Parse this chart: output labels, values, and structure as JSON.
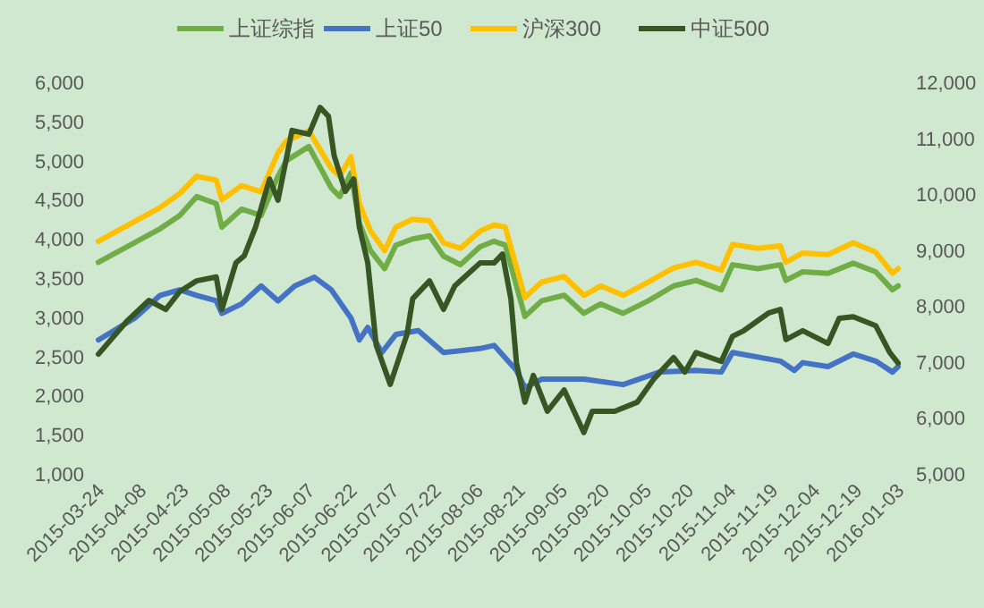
{
  "chart_data": {
    "type": "line",
    "legend": "top",
    "line_style": "solid",
    "xlim": [
      "2015-03-24",
      "2016-01-03"
    ],
    "xticks": [
      "2015-03-24",
      "2015-04-08",
      "2015-04-23",
      "2015-05-08",
      "2015-05-23",
      "2015-06-07",
      "2015-06-22",
      "2015-07-07",
      "2015-07-22",
      "2015-08-06",
      "2015-08-21",
      "2015-09-05",
      "2015-09-20",
      "2015-10-05",
      "2015-10-20",
      "2015-11-04",
      "2015-11-19",
      "2015-12-04",
      "2015-12-19",
      "2016-01-03"
    ],
    "ylim": [
      1000,
      6000
    ],
    "yticks": [
      {
        "value": 1000,
        "label": "1,000"
      },
      {
        "value": 1500,
        "label": "1,500"
      },
      {
        "value": 2000,
        "label": "2,000"
      },
      {
        "value": 2500,
        "label": "2,500"
      },
      {
        "value": 3000,
        "label": "3,000"
      },
      {
        "value": 3500,
        "label": "3,500"
      },
      {
        "value": 4000,
        "label": "4,000"
      },
      {
        "value": 4500,
        "label": "4,500"
      },
      {
        "value": 5000,
        "label": "5,000"
      },
      {
        "value": 5500,
        "label": "5,500"
      },
      {
        "value": 6000,
        "label": "6,000"
      }
    ],
    "y2lim": [
      5000,
      12000
    ],
    "y2ticks": [
      {
        "value": 5000,
        "label": "5,000"
      },
      {
        "value": 6000,
        "label": "6,000"
      },
      {
        "value": 7000,
        "label": "7,000"
      },
      {
        "value": 8000,
        "label": "8,000"
      },
      {
        "value": 9000,
        "label": "9,000"
      },
      {
        "value": 10000,
        "label": "10,000"
      },
      {
        "value": 11000,
        "label": "11,000"
      },
      {
        "value": 12000,
        "label": "12,000"
      }
    ],
    "series": [
      {
        "name": "上证综指",
        "color": "#70ad47",
        "x": [
          "2015-03-24",
          "2015-04-15",
          "2015-04-22",
          "2015-04-28",
          "2015-05-05",
          "2015-05-07",
          "2015-05-14",
          "2015-05-21",
          "2015-05-27",
          "2015-05-30",
          "2015-06-07",
          "2015-06-15",
          "2015-06-18",
          "2015-06-22",
          "2015-06-25",
          "2015-06-29",
          "2015-07-04",
          "2015-07-08",
          "2015-07-14",
          "2015-07-20",
          "2015-07-25",
          "2015-07-31",
          "2015-08-07",
          "2015-08-12",
          "2015-08-16",
          "2015-08-23",
          "2015-08-29",
          "2015-09-06",
          "2015-09-13",
          "2015-09-19",
          "2015-09-27",
          "2015-10-06",
          "2015-10-15",
          "2015-10-23",
          "2015-11-01",
          "2015-11-05",
          "2015-11-14",
          "2015-11-22",
          "2015-11-24",
          "2015-11-30",
          "2015-12-09",
          "2015-12-18",
          "2015-12-26",
          "2016-01-01",
          "2016-01-03"
        ],
        "values": [
          3700,
          4130,
          4300,
          4540,
          4450,
          4150,
          4380,
          4300,
          4800,
          5000,
          5180,
          4650,
          4540,
          4840,
          4200,
          3850,
          3620,
          3920,
          4000,
          4040,
          3780,
          3670,
          3900,
          3970,
          3920,
          3010,
          3210,
          3280,
          3050,
          3170,
          3050,
          3210,
          3400,
          3470,
          3350,
          3670,
          3620,
          3670,
          3470,
          3580,
          3560,
          3690,
          3580,
          3350,
          3400
        ]
      },
      {
        "name": "上证50",
        "color": "#4472c4",
        "x": [
          "2015-03-24",
          "2015-04-06",
          "2015-04-15",
          "2015-04-22",
          "2015-04-28",
          "2015-05-05",
          "2015-05-07",
          "2015-05-14",
          "2015-05-21",
          "2015-05-27",
          "2015-06-02",
          "2015-06-09",
          "2015-06-15",
          "2015-06-22",
          "2015-06-25",
          "2015-06-28",
          "2015-07-03",
          "2015-07-08",
          "2015-07-16",
          "2015-07-25",
          "2015-08-07",
          "2015-08-12",
          "2015-08-20",
          "2015-08-23",
          "2015-08-29",
          "2015-09-13",
          "2015-09-27",
          "2015-10-10",
          "2015-10-23",
          "2015-11-01",
          "2015-11-05",
          "2015-11-22",
          "2015-11-27",
          "2015-11-30",
          "2015-12-09",
          "2015-12-18",
          "2015-12-26",
          "2016-01-01",
          "2016-01-03"
        ],
        "values": [
          2710,
          2990,
          3280,
          3350,
          3280,
          3210,
          3050,
          3170,
          3400,
          3210,
          3400,
          3510,
          3350,
          2990,
          2710,
          2870,
          2550,
          2780,
          2830,
          2550,
          2600,
          2640,
          2320,
          2100,
          2210,
          2210,
          2140,
          2300,
          2320,
          2300,
          2550,
          2440,
          2320,
          2420,
          2370,
          2530,
          2440,
          2300,
          2370
        ]
      },
      {
        "name": "沪深300",
        "color": "#ffc000",
        "x": [
          "2015-03-24",
          "2015-04-15",
          "2015-04-22",
          "2015-04-28",
          "2015-05-05",
          "2015-05-07",
          "2015-05-14",
          "2015-05-21",
          "2015-05-27",
          "2015-05-30",
          "2015-06-07",
          "2015-06-15",
          "2015-06-18",
          "2015-06-22",
          "2015-06-25",
          "2015-06-29",
          "2015-07-04",
          "2015-07-08",
          "2015-07-14",
          "2015-07-20",
          "2015-07-25",
          "2015-07-31",
          "2015-08-07",
          "2015-08-12",
          "2015-08-16",
          "2015-08-23",
          "2015-08-29",
          "2015-09-06",
          "2015-09-13",
          "2015-09-19",
          "2015-09-27",
          "2015-10-06",
          "2015-10-15",
          "2015-10-23",
          "2015-11-01",
          "2015-11-05",
          "2015-11-14",
          "2015-11-22",
          "2015-11-24",
          "2015-11-30",
          "2015-12-09",
          "2015-12-18",
          "2015-12-26",
          "2016-01-01",
          "2016-01-03"
        ],
        "values": [
          3970,
          4400,
          4580,
          4800,
          4750,
          4500,
          4680,
          4600,
          5100,
          5250,
          5380,
          4900,
          4800,
          5050,
          4450,
          4100,
          3850,
          4150,
          4250,
          4230,
          3950,
          3880,
          4100,
          4180,
          4150,
          3250,
          3450,
          3520,
          3280,
          3400,
          3280,
          3450,
          3630,
          3700,
          3600,
          3930,
          3880,
          3910,
          3700,
          3820,
          3800,
          3950,
          3830,
          3560,
          3620
        ]
      },
      {
        "name": "中证500",
        "color": "#375623",
        "axis": "y2",
        "x": [
          "2015-03-24",
          "2015-04-03",
          "2015-04-11",
          "2015-04-17",
          "2015-04-22",
          "2015-04-28",
          "2015-05-05",
          "2015-05-07",
          "2015-05-12",
          "2015-05-15",
          "2015-05-19",
          "2015-05-24",
          "2015-05-27",
          "2015-06-01",
          "2015-06-07",
          "2015-06-11",
          "2015-06-14",
          "2015-06-16",
          "2015-06-20",
          "2015-06-23",
          "2015-06-25",
          "2015-06-28",
          "2015-07-01",
          "2015-07-06",
          "2015-07-12",
          "2015-07-14",
          "2015-07-20",
          "2015-07-25",
          "2015-07-29",
          "2015-08-07",
          "2015-08-12",
          "2015-08-15",
          "2015-08-18",
          "2015-08-20",
          "2015-08-23",
          "2015-08-26",
          "2015-08-31",
          "2015-09-06",
          "2015-09-13",
          "2015-09-16",
          "2015-09-24",
          "2015-10-02",
          "2015-10-08",
          "2015-10-15",
          "2015-10-19",
          "2015-10-23",
          "2015-11-01",
          "2015-11-05",
          "2015-11-09",
          "2015-11-18",
          "2015-11-22",
          "2015-11-24",
          "2015-11-30",
          "2015-12-09",
          "2015-12-13",
          "2015-12-18",
          "2015-12-26",
          "2015-12-31",
          "2016-01-03"
        ],
        "values": [
          7140,
          7720,
          8100,
          7940,
          8260,
          8450,
          8520,
          7940,
          8770,
          8900,
          9410,
          10270,
          9890,
          11140,
          11070,
          11550,
          11390,
          10690,
          10050,
          10270,
          9410,
          8770,
          7300,
          6600,
          7500,
          8130,
          8450,
          7940,
          8360,
          8770,
          8770,
          8930,
          8130,
          6980,
          6280,
          6760,
          6120,
          6500,
          5740,
          6120,
          6120,
          6280,
          6700,
          7080,
          6820,
          7170,
          7010,
          7460,
          7560,
          7880,
          7940,
          7400,
          7560,
          7330,
          7780,
          7810,
          7650,
          7170,
          6980
        ]
      }
    ]
  }
}
